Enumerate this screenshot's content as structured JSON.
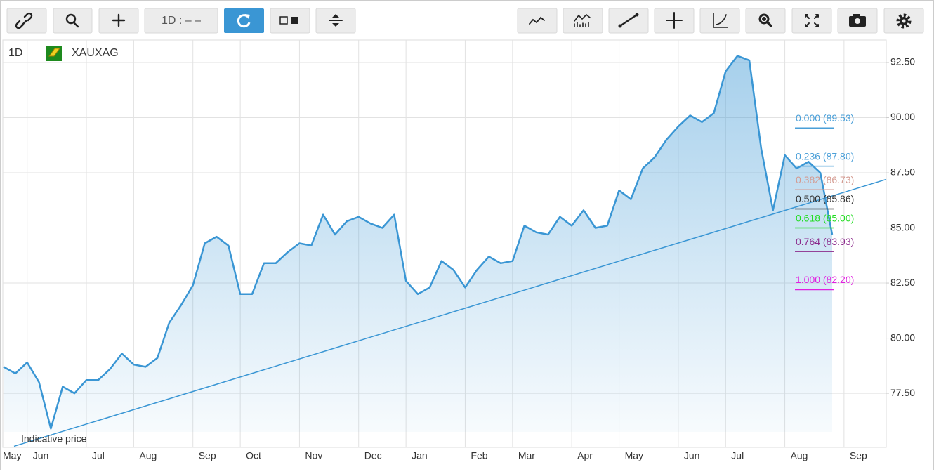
{
  "toolbar": {
    "interval": "1D : – –"
  },
  "chart_data": {
    "type": "line",
    "interval": "1D",
    "symbol": "XAUXAG",
    "note": "Indicative price",
    "categories": [
      "May",
      null,
      "Jun",
      null,
      null,
      null,
      null,
      "Jul",
      null,
      null,
      null,
      "Aug",
      null,
      null,
      null,
      null,
      "Sep",
      null,
      null,
      null,
      "Oct",
      null,
      null,
      null,
      null,
      "Nov",
      null,
      null,
      null,
      null,
      "Dec",
      null,
      null,
      null,
      "Jan",
      null,
      null,
      null,
      null,
      "Feb",
      null,
      null,
      null,
      "Mar",
      null,
      null,
      null,
      null,
      "Apr",
      null,
      null,
      null,
      "May",
      null,
      null,
      null,
      null,
      "Jun",
      null,
      null,
      null,
      "Jul",
      null,
      null,
      null,
      null,
      "Aug",
      null,
      null,
      null,
      null,
      "Sep"
    ],
    "series": [
      {
        "color": "#3a96d4",
        "values": [
          78.7,
          78.4,
          78.9,
          78.0,
          75.9,
          77.8,
          77.5,
          78.1,
          78.1,
          78.6,
          79.3,
          78.8,
          78.7,
          79.1,
          80.7,
          81.5,
          82.4,
          84.3,
          84.6,
          84.2,
          82.0,
          82.0,
          83.4,
          83.4,
          83.9,
          84.3,
          84.2,
          85.6,
          84.7,
          85.3,
          85.5,
          85.2,
          85.0,
          85.6,
          82.6,
          82.0,
          82.3,
          83.5,
          83.1,
          82.3,
          83.1,
          83.7,
          83.4,
          83.5,
          85.1,
          84.8,
          84.7,
          85.5,
          85.1,
          85.8,
          85.0,
          85.1,
          86.7,
          86.3,
          87.7,
          88.2,
          89.0,
          89.6,
          90.1,
          89.8,
          90.2,
          92.1,
          92.8,
          92.6,
          88.6,
          85.8,
          88.3,
          87.7,
          88.0,
          87.5,
          84.7,
          null
        ]
      }
    ],
    "trend_line": {
      "color": "#3a96d4",
      "values": [
        75.1,
        87.2
      ]
    },
    "fib_levels": [
      {
        "label": "0.000 (89.53)",
        "value": 89.53,
        "color": "#4a9fd8"
      },
      {
        "label": "0.236 (87.80)",
        "value": 87.8,
        "color": "#4a9fd8"
      },
      {
        "label": "0.382 (86.73)",
        "value": 86.73,
        "color": "#d49a90"
      },
      {
        "label": "0.500 (85.86)",
        "value": 85.86,
        "color": "#333333"
      },
      {
        "label": "0.618 (85.00)",
        "value": 85.0,
        "color": "#22dd22"
      },
      {
        "label": "0.764 (83.93)",
        "value": 83.93,
        "color": "#8b2a8b"
      },
      {
        "label": "1.000 (82.20)",
        "value": 82.2,
        "color": "#e020e0"
      }
    ],
    "ylim": [
      75.05,
      93.52
    ],
    "yticks": [
      {
        "value": 77.5,
        "label": "77.50"
      },
      {
        "value": 80,
        "label": "80.00"
      },
      {
        "value": 82.5,
        "label": "82.50"
      },
      {
        "value": 85,
        "label": "85.00"
      },
      {
        "value": 87.5,
        "label": "87.50"
      },
      {
        "value": 90,
        "label": "90.00"
      },
      {
        "value": 92.5,
        "label": "92.50"
      }
    ],
    "grid": true
  }
}
